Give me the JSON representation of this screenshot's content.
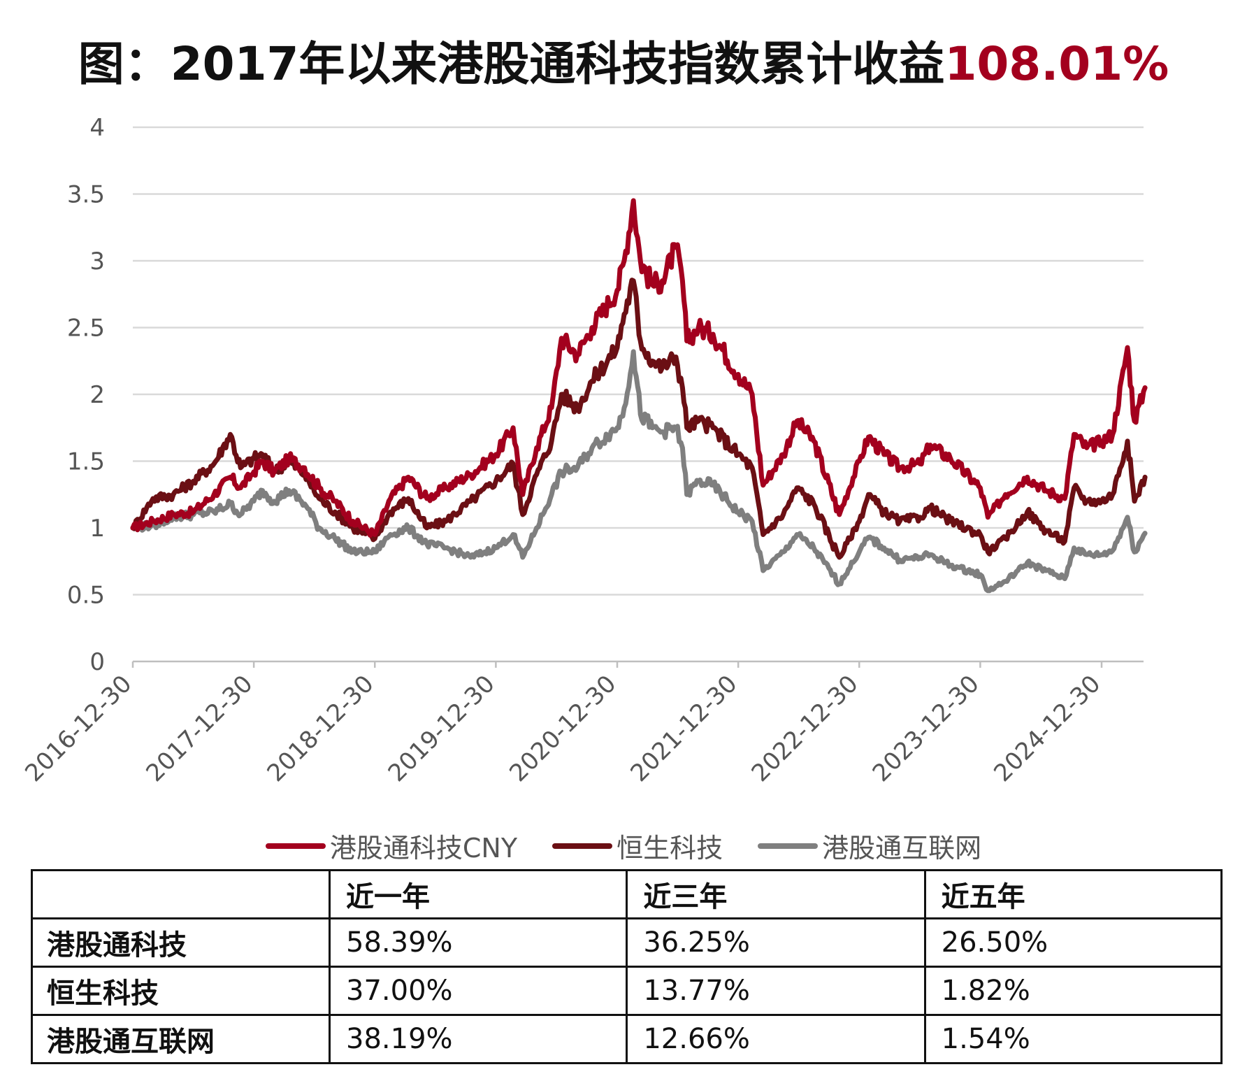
{
  "title": {
    "prefix": "图：2017年以来港股通科技指数累计收益",
    "highlight": "108.01%"
  },
  "chart_data": {
    "type": "line",
    "title": "图：2017年以来港股通科技指数累计收益108.01%",
    "ylim": [
      0,
      4
    ],
    "y_ticks": [
      "0",
      "0.5",
      "1",
      "1.5",
      "2",
      "2.5",
      "3",
      "3.5",
      "4"
    ],
    "x_ticks": [
      "2016-12-30",
      "2017-12-30",
      "2018-12-30",
      "2019-12-30",
      "2020-12-30",
      "2021-12-30",
      "2022-12-30",
      "2023-12-30",
      "2024-12-30"
    ],
    "grid": true,
    "legend_position": "bottom",
    "series": [
      {
        "name": "港股通科技CNY",
        "color": "#a3001e",
        "points": [
          [
            "2016-12-30",
            1.0
          ],
          [
            "2017-03-01",
            1.05
          ],
          [
            "2017-05-01",
            1.1
          ],
          [
            "2017-07-01",
            1.12
          ],
          [
            "2017-09-01",
            1.25
          ],
          [
            "2017-10-20",
            1.38
          ],
          [
            "2017-11-20",
            1.3
          ],
          [
            "2017-12-30",
            1.42
          ],
          [
            "2018-01-25",
            1.5
          ],
          [
            "2018-03-01",
            1.42
          ],
          [
            "2018-04-15",
            1.52
          ],
          [
            "2018-06-01",
            1.45
          ],
          [
            "2018-07-15",
            1.3
          ],
          [
            "2018-09-01",
            1.2
          ],
          [
            "2018-10-25",
            1.05
          ],
          [
            "2018-12-30",
            0.95
          ],
          [
            "2019-02-15",
            1.22
          ],
          [
            "2019-04-10",
            1.38
          ],
          [
            "2019-06-05",
            1.22
          ],
          [
            "2019-08-01",
            1.3
          ],
          [
            "2019-10-15",
            1.4
          ],
          [
            "2019-12-30",
            1.55
          ],
          [
            "2020-02-20",
            1.75
          ],
          [
            "2020-03-20",
            1.25
          ],
          [
            "2020-05-01",
            1.6
          ],
          [
            "2020-06-15",
            1.9
          ],
          [
            "2020-07-15",
            2.42
          ],
          [
            "2020-09-01",
            2.3
          ],
          [
            "2020-10-15",
            2.5
          ],
          [
            "2020-12-30",
            2.78
          ],
          [
            "2021-01-20",
            3.0
          ],
          [
            "2021-02-17",
            3.45
          ],
          [
            "2021-03-10",
            3.0
          ],
          [
            "2021-04-15",
            2.82
          ],
          [
            "2021-05-15",
            2.85
          ],
          [
            "2021-06-25",
            3.1
          ],
          [
            "2021-07-15",
            2.85
          ],
          [
            "2021-07-28",
            2.4
          ],
          [
            "2021-09-01",
            2.5
          ],
          [
            "2021-10-15",
            2.45
          ],
          [
            "2021-12-30",
            2.15
          ],
          [
            "2022-02-10",
            2.0
          ],
          [
            "2022-03-15",
            1.32
          ],
          [
            "2022-05-15",
            1.55
          ],
          [
            "2022-06-25",
            1.8
          ],
          [
            "2022-08-15",
            1.65
          ],
          [
            "2022-10-31",
            1.1
          ],
          [
            "2022-12-30",
            1.5
          ],
          [
            "2023-01-27",
            1.68
          ],
          [
            "2023-03-15",
            1.55
          ],
          [
            "2023-05-01",
            1.45
          ],
          [
            "2023-07-01",
            1.48
          ],
          [
            "2023-08-01",
            1.62
          ],
          [
            "2023-10-01",
            1.52
          ],
          [
            "2023-12-30",
            1.3
          ],
          [
            "2024-01-22",
            1.08
          ],
          [
            "2024-03-15",
            1.25
          ],
          [
            "2024-05-20",
            1.38
          ],
          [
            "2024-07-15",
            1.28
          ],
          [
            "2024-09-10",
            1.22
          ],
          [
            "2024-10-08",
            1.7
          ],
          [
            "2024-11-15",
            1.6
          ],
          [
            "2024-12-30",
            1.65
          ],
          [
            "2025-02-01",
            1.7
          ],
          [
            "2025-03-18",
            2.35
          ],
          [
            "2025-04-08",
            1.8
          ],
          [
            "2025-05-10",
            2.05
          ]
        ]
      },
      {
        "name": "恒生科技",
        "color": "#6b0f14",
        "points": [
          [
            "2016-12-30",
            1.0
          ],
          [
            "2017-03-01",
            1.22
          ],
          [
            "2017-05-01",
            1.25
          ],
          [
            "2017-07-01",
            1.35
          ],
          [
            "2017-09-01",
            1.48
          ],
          [
            "2017-10-20",
            1.7
          ],
          [
            "2017-11-20",
            1.45
          ],
          [
            "2017-12-30",
            1.52
          ],
          [
            "2018-01-25",
            1.55
          ],
          [
            "2018-03-01",
            1.42
          ],
          [
            "2018-04-15",
            1.5
          ],
          [
            "2018-06-01",
            1.4
          ],
          [
            "2018-07-15",
            1.22
          ],
          [
            "2018-09-01",
            1.12
          ],
          [
            "2018-10-25",
            1.0
          ],
          [
            "2018-12-30",
            0.92
          ],
          [
            "2019-02-15",
            1.12
          ],
          [
            "2019-04-10",
            1.22
          ],
          [
            "2019-06-05",
            1.0
          ],
          [
            "2019-08-01",
            1.05
          ],
          [
            "2019-10-15",
            1.2
          ],
          [
            "2019-12-30",
            1.35
          ],
          [
            "2020-02-20",
            1.48
          ],
          [
            "2020-03-20",
            1.1
          ],
          [
            "2020-05-01",
            1.4
          ],
          [
            "2020-06-15",
            1.65
          ],
          [
            "2020-07-15",
            2.0
          ],
          [
            "2020-09-01",
            1.9
          ],
          [
            "2020-10-15",
            2.1
          ],
          [
            "2020-12-30",
            2.35
          ],
          [
            "2021-01-20",
            2.6
          ],
          [
            "2021-02-17",
            2.85
          ],
          [
            "2021-03-10",
            2.4
          ],
          [
            "2021-04-15",
            2.25
          ],
          [
            "2021-05-15",
            2.2
          ],
          [
            "2021-06-25",
            2.28
          ],
          [
            "2021-07-15",
            2.05
          ],
          [
            "2021-07-28",
            1.75
          ],
          [
            "2021-09-01",
            1.8
          ],
          [
            "2021-10-15",
            1.75
          ],
          [
            "2021-12-30",
            1.55
          ],
          [
            "2022-02-10",
            1.45
          ],
          [
            "2022-03-15",
            0.95
          ],
          [
            "2022-05-15",
            1.1
          ],
          [
            "2022-06-25",
            1.3
          ],
          [
            "2022-08-15",
            1.18
          ],
          [
            "2022-10-31",
            0.78
          ],
          [
            "2022-12-30",
            1.05
          ],
          [
            "2023-01-27",
            1.25
          ],
          [
            "2023-03-15",
            1.12
          ],
          [
            "2023-05-01",
            1.05
          ],
          [
            "2023-07-01",
            1.08
          ],
          [
            "2023-08-01",
            1.15
          ],
          [
            "2023-10-01",
            1.05
          ],
          [
            "2023-12-30",
            0.95
          ],
          [
            "2024-01-22",
            0.82
          ],
          [
            "2024-03-15",
            0.92
          ],
          [
            "2024-05-20",
            1.12
          ],
          [
            "2024-07-15",
            0.98
          ],
          [
            "2024-09-10",
            0.9
          ],
          [
            "2024-10-08",
            1.3
          ],
          [
            "2024-11-15",
            1.2
          ],
          [
            "2024-12-30",
            1.2
          ],
          [
            "2025-02-01",
            1.25
          ],
          [
            "2025-03-18",
            1.65
          ],
          [
            "2025-04-08",
            1.2
          ],
          [
            "2025-05-10",
            1.38
          ]
        ]
      },
      {
        "name": "港股通互联网",
        "color": "#7f7f7f",
        "points": [
          [
            "2016-12-30",
            1.0
          ],
          [
            "2017-03-01",
            1.02
          ],
          [
            "2017-05-01",
            1.08
          ],
          [
            "2017-07-01",
            1.1
          ],
          [
            "2017-09-01",
            1.12
          ],
          [
            "2017-10-20",
            1.18
          ],
          [
            "2017-11-20",
            1.1
          ],
          [
            "2017-12-30",
            1.2
          ],
          [
            "2018-01-25",
            1.28
          ],
          [
            "2018-03-01",
            1.2
          ],
          [
            "2018-04-15",
            1.28
          ],
          [
            "2018-06-01",
            1.18
          ],
          [
            "2018-07-15",
            1.0
          ],
          [
            "2018-09-01",
            0.92
          ],
          [
            "2018-10-25",
            0.82
          ],
          [
            "2018-12-30",
            0.82
          ],
          [
            "2019-02-15",
            0.95
          ],
          [
            "2019-04-10",
            1.0
          ],
          [
            "2019-06-05",
            0.88
          ],
          [
            "2019-08-01",
            0.85
          ],
          [
            "2019-10-15",
            0.78
          ],
          [
            "2019-12-30",
            0.85
          ],
          [
            "2020-02-20",
            0.95
          ],
          [
            "2020-03-20",
            0.78
          ],
          [
            "2020-05-01",
            1.0
          ],
          [
            "2020-06-15",
            1.25
          ],
          [
            "2020-07-15",
            1.42
          ],
          [
            "2020-09-01",
            1.45
          ],
          [
            "2020-10-15",
            1.6
          ],
          [
            "2020-12-30",
            1.75
          ],
          [
            "2021-01-20",
            1.9
          ],
          [
            "2021-02-17",
            2.32
          ],
          [
            "2021-03-10",
            1.85
          ],
          [
            "2021-04-15",
            1.75
          ],
          [
            "2021-05-15",
            1.72
          ],
          [
            "2021-06-25",
            1.75
          ],
          [
            "2021-07-15",
            1.6
          ],
          [
            "2021-07-28",
            1.25
          ],
          [
            "2021-09-01",
            1.35
          ],
          [
            "2021-10-15",
            1.32
          ],
          [
            "2021-12-30",
            1.12
          ],
          [
            "2022-02-10",
            1.05
          ],
          [
            "2022-03-15",
            0.68
          ],
          [
            "2022-05-15",
            0.82
          ],
          [
            "2022-06-25",
            0.95
          ],
          [
            "2022-08-15",
            0.85
          ],
          [
            "2022-10-31",
            0.58
          ],
          [
            "2022-12-30",
            0.82
          ],
          [
            "2023-01-27",
            0.93
          ],
          [
            "2023-03-15",
            0.85
          ],
          [
            "2023-05-01",
            0.76
          ],
          [
            "2023-07-01",
            0.78
          ],
          [
            "2023-08-01",
            0.8
          ],
          [
            "2023-10-01",
            0.72
          ],
          [
            "2023-12-30",
            0.65
          ],
          [
            "2024-01-22",
            0.53
          ],
          [
            "2024-03-15",
            0.6
          ],
          [
            "2024-05-20",
            0.74
          ],
          [
            "2024-07-15",
            0.68
          ],
          [
            "2024-09-10",
            0.62
          ],
          [
            "2024-10-08",
            0.85
          ],
          [
            "2024-11-15",
            0.8
          ],
          [
            "2024-12-30",
            0.8
          ],
          [
            "2025-02-01",
            0.83
          ],
          [
            "2025-03-18",
            1.08
          ],
          [
            "2025-04-08",
            0.82
          ],
          [
            "2025-05-10",
            0.96
          ]
        ]
      }
    ]
  },
  "table": {
    "headers": [
      "",
      "近一年",
      "近三年",
      "近五年"
    ],
    "rows": [
      {
        "name": "港股通科技",
        "values": [
          "58.39%",
          "36.25%",
          "26.50%"
        ]
      },
      {
        "name": "恒生科技",
        "values": [
          "37.00%",
          "13.77%",
          "1.82%"
        ]
      },
      {
        "name": "港股通互联网",
        "values": [
          "38.19%",
          "12.66%",
          "1.54%"
        ]
      }
    ]
  }
}
